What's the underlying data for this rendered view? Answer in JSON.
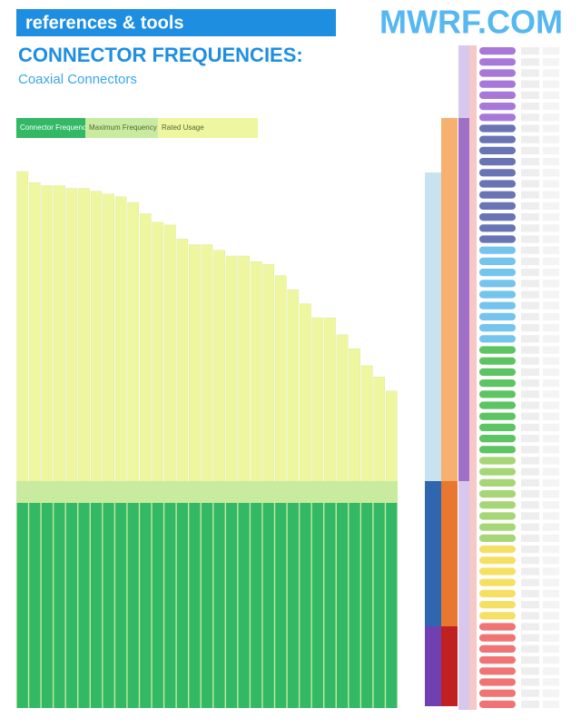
{
  "header": {
    "brand": "references & tools",
    "site": "MWRF.COM"
  },
  "chart_data": {
    "type": "bar",
    "title": "CONNECTOR FREQUENCIES:",
    "subtitle": "Coaxial Connectors",
    "legend_labels": [
      "Connector Frequencies",
      "Maximum Frequency",
      "Rated Usage"
    ],
    "legend_colors": [
      "#33b866",
      "#c9eba0",
      "#eef7a0"
    ],
    "categories": [
      null,
      null,
      null,
      null,
      null,
      null,
      null,
      null,
      null,
      null,
      null,
      null,
      null,
      null,
      null,
      null,
      null,
      null,
      null,
      null,
      null,
      null,
      null,
      null,
      null,
      null,
      null,
      null,
      null,
      null,
      null
    ],
    "values": [
      110,
      106,
      105,
      105,
      104,
      104,
      103,
      102,
      101,
      99,
      95,
      92,
      91,
      86,
      84,
      84,
      82,
      80,
      80,
      78,
      77,
      73,
      68,
      63,
      58,
      58,
      52,
      47,
      41,
      37,
      32
    ],
    "color": "#eef7a0",
    "ylim": [
      0,
      120
    ]
  }
}
